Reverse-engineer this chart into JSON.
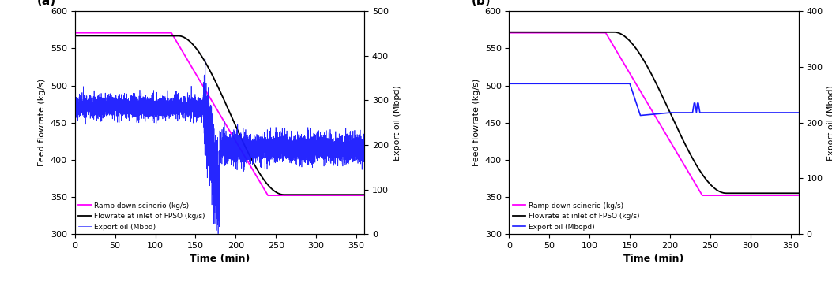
{
  "panel_a": {
    "label": "(a)",
    "ylim_left": [
      300,
      600
    ],
    "ylim_right": [
      0,
      500
    ],
    "xlim": [
      0,
      360
    ],
    "yticks_left": [
      300,
      350,
      400,
      450,
      500,
      550,
      600
    ],
    "yticks_right": [
      0,
      100,
      200,
      300,
      400,
      500
    ],
    "xticks": [
      0,
      50,
      100,
      150,
      200,
      250,
      300,
      350
    ],
    "ylabel_left": "Feed flowrate (kg/s)",
    "ylabel_right": "Export oil (Mbpd)",
    "xlabel": "Time (min)",
    "ramp_color": "#ff00ff",
    "fpso_color": "#000000",
    "export_color": "#1a1aff",
    "legend_labels": [
      "Ramp down scinerio (kg/s)",
      "Flowrate at inlet of FPSO (kg/s)",
      "Export oil (Mbpd)"
    ],
    "ramp_flat_val": 571,
    "ramp_start_t": 120,
    "ramp_end_t": 240,
    "ramp_end_val": 352,
    "fpso_flat_val": 567,
    "fpso_start_t": 128,
    "fpso_end_t": 260,
    "fpso_end_val": 353,
    "export_early_val": 285,
    "export_early_noise": 12,
    "export_drop_start": 160,
    "export_drop_end": 180,
    "export_drop_val": 80,
    "export_post_val": 195,
    "export_post_noise": 18,
    "export_final_val": 195,
    "export_noise_final": 15
  },
  "panel_b": {
    "label": "(b)",
    "ylim_left": [
      300,
      600
    ],
    "ylim_right": [
      0,
      400
    ],
    "xlim": [
      0,
      360
    ],
    "yticks_left": [
      300,
      350,
      400,
      450,
      500,
      550,
      600
    ],
    "yticks_right": [
      0,
      100,
      200,
      300,
      400
    ],
    "xticks": [
      0,
      50,
      100,
      150,
      200,
      250,
      300,
      350
    ],
    "ylabel_left": "Feed flowrate (kg/s)",
    "ylabel_right": "Export oil (Mbpd)",
    "xlabel": "Time (min)",
    "ramp_color": "#ff00ff",
    "fpso_color": "#000000",
    "export_color": "#1a1aff",
    "legend_labels": [
      "Ramp down scinerio (kg/s)",
      "Flowrate at inlet of FPSO (kg/s)",
      "Export oil (Mbopd)"
    ],
    "ramp_flat_val": 571,
    "ramp_start_t": 120,
    "ramp_end_t": 240,
    "ramp_end_val": 352,
    "fpso_flat_val": 572,
    "fpso_start_t": 130,
    "fpso_end_t": 270,
    "fpso_end_val": 355,
    "export_flat_val": 270,
    "export_flat_end": 150,
    "export_drop_end": 163,
    "export_drop_val": 213,
    "export_rise_end": 200,
    "export_rise_val": 218,
    "export_step_val": 218,
    "export_spike_start": 228,
    "export_spike_end": 240,
    "export_spike_val": 235,
    "export_final_val": 218
  }
}
